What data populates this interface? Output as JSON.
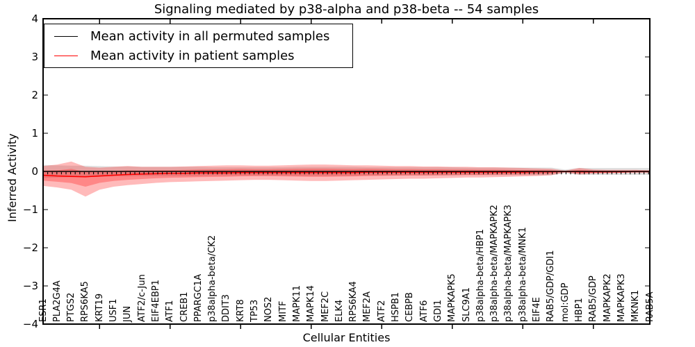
{
  "title": "Signaling mediated by p38-alpha and p38-beta -- 54 samples",
  "axes": {
    "xlabel": "Cellular Entities",
    "ylabel": "Inferred Activity",
    "yticks": [
      {
        "value": 4,
        "label": "4"
      },
      {
        "value": 3,
        "label": "3"
      },
      {
        "value": 2,
        "label": "2"
      },
      {
        "value": 1,
        "label": "1"
      },
      {
        "value": 0,
        "label": "0"
      },
      {
        "value": -1,
        "label": "−1"
      },
      {
        "value": -2,
        "label": "−2"
      },
      {
        "value": -3,
        "label": "−3"
      },
      {
        "value": -4,
        "label": "−4"
      }
    ]
  },
  "legend": {
    "entries": [
      {
        "label": "Mean activity in all permuted samples",
        "color": "#000000"
      },
      {
        "label": "Mean activity in patient samples",
        "color": "#ff0000"
      }
    ]
  },
  "colors": {
    "permuted_line": "#000000",
    "patient_line": "#ff0000",
    "patient_band": "#ff0000",
    "permuted_band": "#555555",
    "axis": "#000000"
  },
  "chart_data": {
    "type": "line",
    "title": "Signaling mediated by p38-alpha and p38-beta -- 54 samples",
    "xlabel": "Cellular Entities",
    "ylabel": "Inferred Activity",
    "ylim": [
      -4,
      4
    ],
    "grid": false,
    "legend_position": "upper left",
    "categories": [
      "ESR1",
      "PLA2G4A",
      "PTGS2",
      "RPS6KA5",
      "KRT19",
      "USF1",
      "JUN",
      "ATF2/c-Jun",
      "EIF4EBP1",
      "ATF1",
      "CREB1",
      "PPARGC1A",
      "p38alpha-beta/CK2",
      "DDIT3",
      "KRT8",
      "TP53",
      "NOS2",
      "MITF",
      "MAPK11",
      "MAPK14",
      "MEF2C",
      "ELK4",
      "RPS6KA4",
      "MEF2A",
      "ATF2",
      "HSPB1",
      "CEBPB",
      "ATF6",
      "GDI1",
      "MAPKAPK5",
      "SLC9A1",
      "p38alpha-beta/HBP1",
      "p38alpha-beta/MAPKAPK2",
      "p38alpha-beta/MAPKAPK3",
      "p38alpha-beta/MNK1",
      "EIF4E",
      "RAB5/GDP/GDI1",
      "mol:GDP",
      "HBP1",
      "RAB5/GDP",
      "MAPKAPK2",
      "MAPKAPK3",
      "MKNK1",
      "RAB5A"
    ],
    "series": [
      {
        "name": "Mean activity in all permuted samples",
        "color": "#000000",
        "marker": "|",
        "values": [
          0,
          0,
          0,
          0,
          0,
          0,
          0,
          0,
          0,
          0,
          0,
          0,
          0,
          0,
          0,
          0,
          0,
          0,
          0,
          0,
          0,
          0,
          0,
          0,
          0,
          0,
          0,
          0,
          0,
          0,
          0,
          0,
          0,
          0,
          0,
          0,
          0,
          0,
          0,
          0,
          0,
          0,
          0,
          0
        ],
        "band_std": [
          0.17,
          0.16,
          0.15,
          0.15,
          0.14,
          0.13,
          0.13,
          0.12,
          0.12,
          0.12,
          0.12,
          0.12,
          0.11,
          0.11,
          0.11,
          0.11,
          0.11,
          0.11,
          0.12,
          0.12,
          0.12,
          0.12,
          0.12,
          0.11,
          0.11,
          0.11,
          0.11,
          0.11,
          0.11,
          0.11,
          0.1,
          0.1,
          0.1,
          0.1,
          0.1,
          0.1,
          0.1,
          0.05,
          0.09,
          0.09,
          0.09,
          0.09,
          0.09,
          0.09
        ]
      },
      {
        "name": "Mean activity in patient samples",
        "color": "#ff0000",
        "values": [
          -0.1,
          -0.12,
          -0.13,
          -0.14,
          -0.12,
          -0.1,
          -0.08,
          -0.07,
          -0.06,
          -0.05,
          -0.05,
          -0.04,
          -0.04,
          -0.04,
          -0.03,
          -0.03,
          -0.03,
          -0.03,
          -0.03,
          -0.03,
          -0.03,
          -0.03,
          -0.03,
          -0.02,
          -0.02,
          -0.02,
          -0.02,
          -0.02,
          -0.02,
          -0.02,
          -0.02,
          -0.02,
          -0.02,
          -0.02,
          -0.02,
          -0.01,
          -0.01,
          0.0,
          -0.01,
          -0.01,
          -0.01,
          -0.01,
          0.0,
          0.0
        ],
        "band_upper": [
          0.14,
          0.18,
          0.26,
          0.12,
          0.1,
          0.12,
          0.14,
          0.12,
          0.12,
          0.12,
          0.13,
          0.14,
          0.15,
          0.16,
          0.16,
          0.15,
          0.15,
          0.16,
          0.17,
          0.18,
          0.18,
          0.17,
          0.16,
          0.16,
          0.15,
          0.14,
          0.14,
          0.13,
          0.13,
          0.12,
          0.12,
          0.11,
          0.11,
          0.1,
          0.09,
          0.08,
          0.07,
          0.02,
          0.09,
          0.05,
          0.04,
          0.04,
          0.04,
          0.03
        ],
        "band_lower": [
          -0.38,
          -0.42,
          -0.48,
          -0.66,
          -0.48,
          -0.4,
          -0.36,
          -0.33,
          -0.3,
          -0.28,
          -0.27,
          -0.26,
          -0.25,
          -0.24,
          -0.23,
          -0.22,
          -0.22,
          -0.23,
          -0.24,
          -0.25,
          -0.25,
          -0.24,
          -0.23,
          -0.22,
          -0.21,
          -0.2,
          -0.19,
          -0.19,
          -0.18,
          -0.17,
          -0.16,
          -0.16,
          -0.15,
          -0.14,
          -0.13,
          -0.12,
          -0.1,
          -0.03,
          -0.08,
          -0.06,
          -0.05,
          -0.04,
          -0.04,
          -0.04
        ]
      }
    ]
  }
}
